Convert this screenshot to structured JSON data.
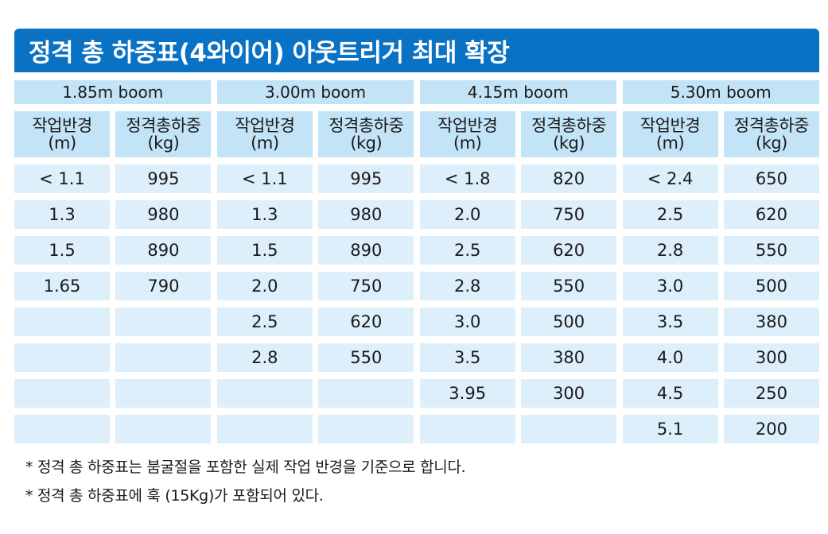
{
  "title": "정격 총 하중표(4와이어) 아웃트리거 최대 확장",
  "header": {
    "radius_label": "작업반경",
    "radius_unit": "(m)",
    "load_label": "정격총하중",
    "load_unit": "(kg)"
  },
  "booms": [
    {
      "label": "1.85m boom",
      "rows": [
        {
          "radius": "< 1.1",
          "load": "995"
        },
        {
          "radius": "1.3",
          "load": "980"
        },
        {
          "radius": "1.5",
          "load": "890"
        },
        {
          "radius": "1.65",
          "load": "790"
        },
        {
          "radius": "",
          "load": ""
        },
        {
          "radius": "",
          "load": ""
        },
        {
          "radius": "",
          "load": ""
        },
        {
          "radius": "",
          "load": ""
        }
      ]
    },
    {
      "label": "3.00m boom",
      "rows": [
        {
          "radius": "< 1.1",
          "load": "995"
        },
        {
          "radius": "1.3",
          "load": "980"
        },
        {
          "radius": "1.5",
          "load": "890"
        },
        {
          "radius": "2.0",
          "load": "750"
        },
        {
          "radius": "2.5",
          "load": "620"
        },
        {
          "radius": "2.8",
          "load": "550"
        },
        {
          "radius": "",
          "load": ""
        },
        {
          "radius": "",
          "load": ""
        }
      ]
    },
    {
      "label": "4.15m boom",
      "rows": [
        {
          "radius": "< 1.8",
          "load": "820"
        },
        {
          "radius": "2.0",
          "load": "750"
        },
        {
          "radius": "2.5",
          "load": "620"
        },
        {
          "radius": "2.8",
          "load": "550"
        },
        {
          "radius": "3.0",
          "load": "500"
        },
        {
          "radius": "3.5",
          "load": "380"
        },
        {
          "radius": "3.95",
          "load": "300"
        },
        {
          "radius": "",
          "load": ""
        }
      ]
    },
    {
      "label": "5.30m boom",
      "rows": [
        {
          "radius": "< 2.4",
          "load": "650"
        },
        {
          "radius": "2.5",
          "load": "620"
        },
        {
          "radius": "2.8",
          "load": "550"
        },
        {
          "radius": "3.0",
          "load": "500"
        },
        {
          "radius": "3.5",
          "load": "380"
        },
        {
          "radius": "4.0",
          "load": "300"
        },
        {
          "radius": "4.5",
          "load": "250"
        },
        {
          "radius": "5.1",
          "load": "200"
        }
      ]
    }
  ],
  "notes": [
    "* 정격 총 하중표는 붐굴절을 포함한 실제 작업 반경을 기준으로 합니다.",
    "* 정격 총 하중표에 훅 (15Kg)가 포함되어 있다."
  ],
  "colors": {
    "title_bg": "#0a72c4",
    "header_bg": "#c3e3f6",
    "cell_bg": "#ddeffb"
  }
}
